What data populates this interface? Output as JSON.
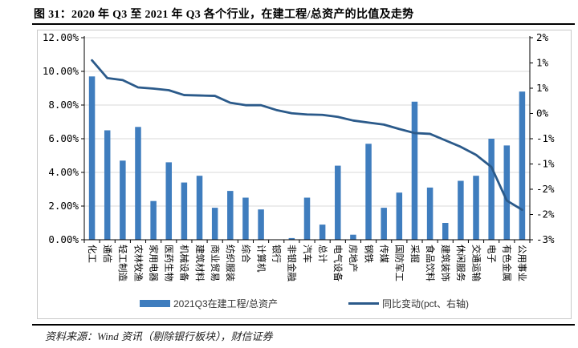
{
  "title": "图 31：2020 年 Q3 至 2021 年 Q3 各个行业，在建工程/总资产的比值及走势",
  "footer": {
    "source": "资料来源：Wind 资讯（剔除银行板块），财信证券"
  },
  "chart_data": {
    "type": "bar",
    "subtype": "bar+line-combo",
    "categories": [
      "化工",
      "通信",
      "轻工制造",
      "农林牧渔",
      "家用电器",
      "医药生物",
      "机械设备",
      "建筑材料",
      "商业贸易",
      "纺织服装",
      "综合",
      "计算机",
      "银行",
      "非银金融",
      "汽车",
      "总计",
      "电气设备",
      "房地产",
      "钢铁",
      "传媒",
      "国防军工",
      "采掘",
      "食品饮料",
      "建筑装饰",
      "休闲服务",
      "交通运输",
      "电子",
      "有色金属",
      "公用事业"
    ],
    "series": [
      {
        "name": "2021Q3在建工程/总资产",
        "type": "bar",
        "axis": "left",
        "unit": "%",
        "values": [
          9.7,
          6.5,
          4.7,
          6.7,
          2.3,
          4.6,
          3.4,
          3.8,
          1.9,
          2.9,
          2.5,
          1.8,
          0.0,
          0.1,
          2.5,
          0.9,
          4.4,
          0.3,
          5.7,
          1.9,
          2.8,
          8.2,
          3.1,
          1.0,
          3.5,
          3.8,
          6.0,
          5.6,
          8.8
        ]
      },
      {
        "name": "同比变动(pct、右轴)",
        "type": "line",
        "axis": "right",
        "unit": "pct",
        "values": [
          1.44,
          1.0,
          0.95,
          0.77,
          0.74,
          0.7,
          0.58,
          0.57,
          0.56,
          0.39,
          0.33,
          0.33,
          0.21,
          0.13,
          0.1,
          0.09,
          0.04,
          -0.05,
          -0.1,
          -0.15,
          -0.26,
          -0.36,
          -0.38,
          -0.54,
          -0.7,
          -0.9,
          -1.2,
          -2.03,
          -2.26
        ]
      }
    ],
    "left_axis": {
      "min": 0,
      "max": 12,
      "tick_values": [
        12,
        10,
        8,
        6,
        4,
        2,
        0
      ],
      "tick_labels": [
        "12.00%",
        "10.00%",
        "8.00%",
        "6.00%",
        "4.00%",
        "2.00%",
        "0.00%"
      ]
    },
    "right_axis": {
      "min": -3,
      "max": 2,
      "tick_labels": [
        "2%",
        "1%",
        "1%",
        "0%",
        "-1%",
        "-1%",
        "-2%",
        "-2%",
        "-3%"
      ]
    },
    "grid": true,
    "legend_position": "bottom",
    "colors": {
      "bar": "#3f7dbe",
      "line": "#2b5a8a",
      "gridline": "#d9d9d9",
      "axis": "#000000"
    }
  }
}
